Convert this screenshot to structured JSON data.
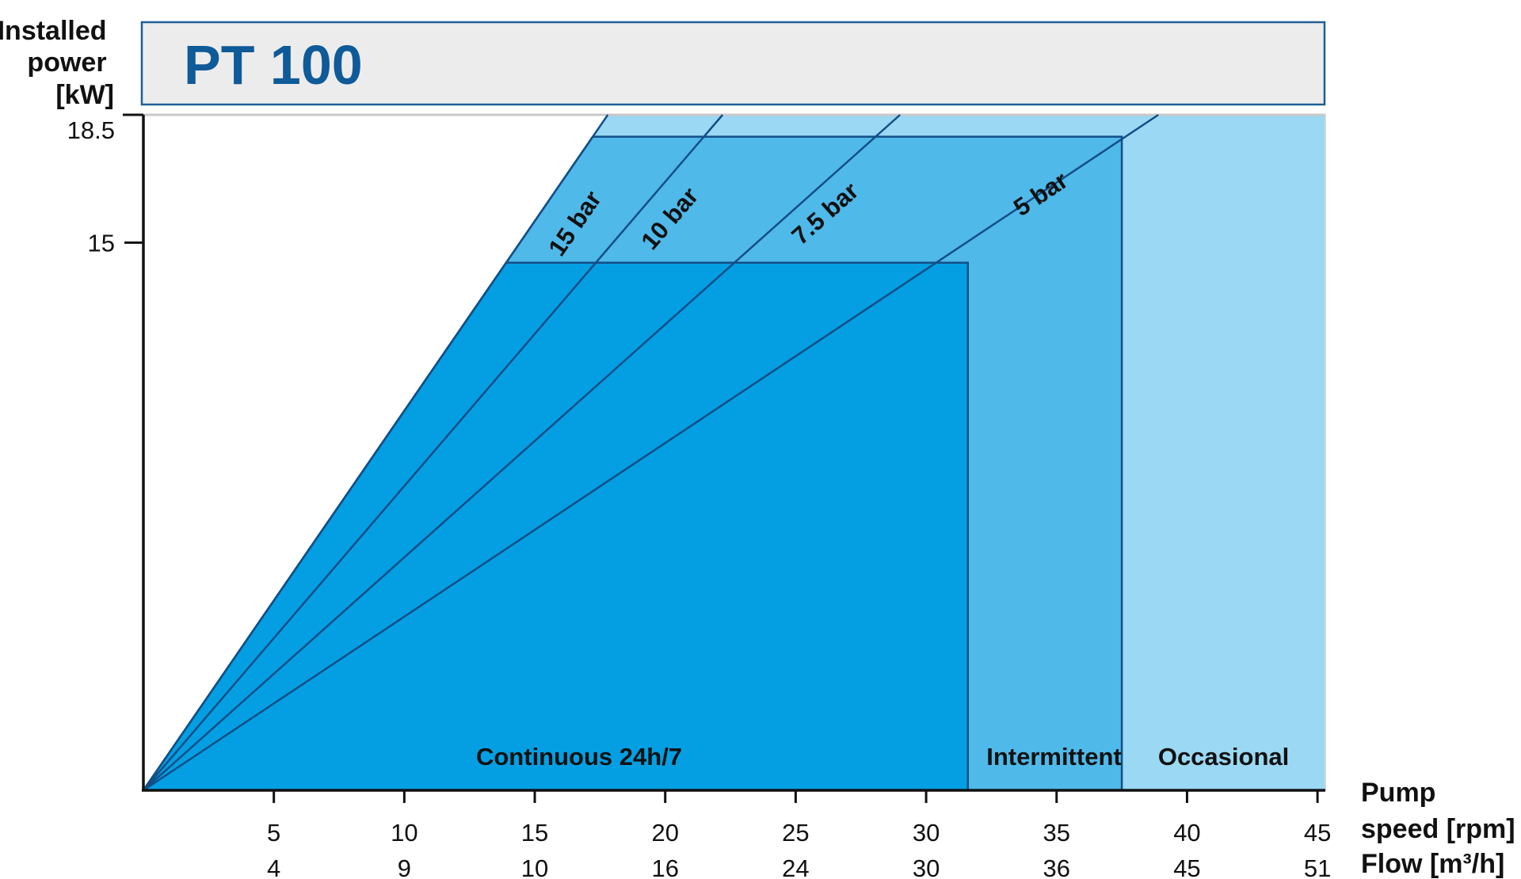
{
  "chart_data": {
    "type": "area",
    "title": "PT 100",
    "ylabel_lines": [
      "Installed",
      "power",
      "[kW]"
    ],
    "xlabel_lines": [
      "Pump",
      "speed [rpm]",
      "Flow [m³/h]"
    ],
    "x_ticks": [
      5,
      10,
      15,
      20,
      25,
      30,
      35,
      40,
      45
    ],
    "x_tick_labels": [
      "5",
      "10",
      "15",
      "20",
      "25",
      "30",
      "35",
      "40",
      "45"
    ],
    "flow_tick_labels": [
      "4",
      "9",
      "10",
      "16",
      "24",
      "30",
      "36",
      "45",
      "51"
    ],
    "y_ticks": [
      15,
      18.5
    ],
    "y_tick_labels": [
      "15",
      "18.5"
    ],
    "xlim": [
      0,
      45.3
    ],
    "ylim": [
      0,
      18.5
    ],
    "pressure_curves": [
      {
        "name": "15 bar",
        "label": "15 bar",
        "x_at_ymax": 17.8
      },
      {
        "name": "10 bar",
        "label": "10 bar",
        "x_at_ymax": 22.2
      },
      {
        "name": "7.5 bar",
        "label": "7.5 bar",
        "x_at_ymax": 29.0
      },
      {
        "name": "5 bar",
        "label": "5 bar",
        "x_at_ymax": 38.9
      }
    ],
    "regions": [
      {
        "name": "Continuous 24h/7",
        "label": "Continuous 24h/7",
        "speed_max": 31.6,
        "power_max": 14.45,
        "color": "#039fe2"
      },
      {
        "name": "Intermittent",
        "label": "Intermittent",
        "speed_max": 37.5,
        "power_max": 17.9,
        "color": "#4fb9e9"
      },
      {
        "name": "Occasional",
        "label": "Occasional",
        "speed_max": 45.3,
        "power_max": 18.5,
        "color": "#9ad8f3"
      }
    ],
    "colors": {
      "title": "#0f5a98",
      "title_box_fill": "#ececec",
      "title_box_border": "#1f5f95",
      "line": "#124e86",
      "axis": "#111111"
    }
  }
}
